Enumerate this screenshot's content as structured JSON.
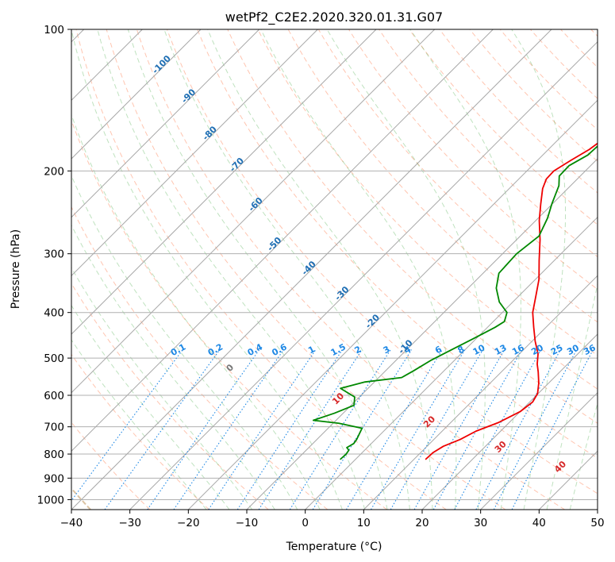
{
  "chart_data": {
    "type": "line",
    "subtype": "skew-t log-p diagram",
    "title": "wetPf2_C2E2.2020.320.01.31.G07",
    "xlabel": "Temperature (°C)",
    "ylabel": "Pressure (hPa)",
    "xlim": [
      -40,
      50
    ],
    "ylim": [
      1050,
      100
    ],
    "y_scale": "log",
    "x_ticks": [
      -40,
      -30,
      -20,
      -10,
      0,
      10,
      20,
      30,
      40,
      50
    ],
    "y_ticks": [
      100,
      200,
      300,
      400,
      500,
      600,
      700,
      800,
      900,
      1000
    ],
    "grid": true,
    "series": [
      {
        "key": "temperature",
        "color": "#ee0000",
        "points": [
          [
            12.0,
            820
          ],
          [
            12.1,
            795
          ],
          [
            12.8,
            770
          ],
          [
            14.5,
            745
          ],
          [
            15.8,
            715
          ],
          [
            18.2,
            685
          ],
          [
            20.0,
            650
          ],
          [
            20.5,
            620
          ],
          [
            19.9,
            595
          ],
          [
            18.3,
            565
          ],
          [
            16.3,
            535
          ],
          [
            14.8,
            515
          ],
          [
            13.2,
            490
          ],
          [
            10.5,
            460
          ],
          [
            7.9,
            430
          ],
          [
            5.2,
            400
          ],
          [
            3.0,
            370
          ],
          [
            0.6,
            340
          ],
          [
            -2.6,
            310
          ],
          [
            -6.0,
            280
          ],
          [
            -9.4,
            255
          ],
          [
            -12.0,
            235
          ],
          [
            -14.3,
            218
          ],
          [
            -15.3,
            208
          ],
          [
            -15.4,
            200
          ],
          [
            -14.3,
            190
          ],
          [
            -13.0,
            180
          ],
          [
            -12.3,
            170
          ],
          [
            -12.0,
            160
          ],
          [
            -10.4,
            145
          ],
          [
            -9.0,
            135
          ],
          [
            -8.4,
            125
          ],
          [
            -8.6,
            118
          ],
          [
            -9.2,
            112
          ],
          [
            -10.0,
            106
          ],
          [
            -10.7,
            100
          ]
        ]
      },
      {
        "key": "dewpoint",
        "color": "#008800",
        "points": [
          [
            -2.6,
            820
          ],
          [
            -2.5,
            800
          ],
          [
            -2.7,
            785
          ],
          [
            -3.5,
            775
          ],
          [
            -3.0,
            760
          ],
          [
            -3.2,
            745
          ],
          [
            -4.2,
            705
          ],
          [
            -9.0,
            688
          ],
          [
            -13.9,
            678
          ],
          [
            -11.5,
            655
          ],
          [
            -9.5,
            630
          ],
          [
            -10.8,
            605
          ],
          [
            -14.7,
            580
          ],
          [
            -11.6,
            562
          ],
          [
            -6.1,
            550
          ],
          [
            -5.2,
            532
          ],
          [
            -4.0,
            505
          ],
          [
            -2.3,
            480
          ],
          [
            -0.5,
            455
          ],
          [
            1.3,
            430
          ],
          [
            1.9,
            418
          ],
          [
            0.8,
            400
          ],
          [
            -2.3,
            380
          ],
          [
            -5.2,
            355
          ],
          [
            -7.3,
            330
          ],
          [
            -7.6,
            300
          ],
          [
            -6.8,
            275
          ],
          [
            -8.4,
            252
          ],
          [
            -10.1,
            235
          ],
          [
            -12.0,
            215
          ],
          [
            -13.6,
            205
          ],
          [
            -13.7,
            195
          ],
          [
            -12.3,
            185
          ],
          [
            -12.0,
            170
          ],
          [
            -12.3,
            160
          ],
          [
            -12.4,
            150
          ],
          [
            -12.4,
            140
          ],
          [
            -12.5,
            128
          ],
          [
            -12.1,
            118
          ],
          [
            -10.8,
            110
          ],
          [
            -9.7,
            105
          ],
          [
            -9.0,
            100
          ]
        ]
      }
    ],
    "dry_adiabat_labels": [
      {
        "text": "-100",
        "temp": -100,
        "p": 120
      },
      {
        "text": "-90",
        "temp": -90,
        "p": 140
      },
      {
        "text": "-80",
        "temp": -80,
        "p": 168
      },
      {
        "text": "-70",
        "temp": -70,
        "p": 196
      },
      {
        "text": "-60",
        "temp": -60,
        "p": 238
      },
      {
        "text": "-50",
        "temp": -50,
        "p": 289
      },
      {
        "text": "-40",
        "temp": -40,
        "p": 325
      },
      {
        "text": "-30",
        "temp": -30,
        "p": 368
      },
      {
        "text": "-20",
        "temp": -20,
        "p": 422
      },
      {
        "text": "-10",
        "temp": -10,
        "p": 478
      }
    ],
    "mixing_ratio_labels": [
      "0.1",
      "0.2",
      "0.4",
      "0.6",
      "1",
      "1.5",
      "2",
      "3",
      "4",
      "6",
      "8",
      "10",
      "13",
      "16",
      "20",
      "25",
      "30",
      "36"
    ],
    "moist_adiabat_labels": [
      {
        "text": "0",
        "temp": 0
      },
      {
        "text": "10",
        "temp": 10
      },
      {
        "text": "20",
        "temp": 20
      },
      {
        "text": "30",
        "temp": 30
      },
      {
        "text": "40",
        "temp": 40
      }
    ]
  }
}
